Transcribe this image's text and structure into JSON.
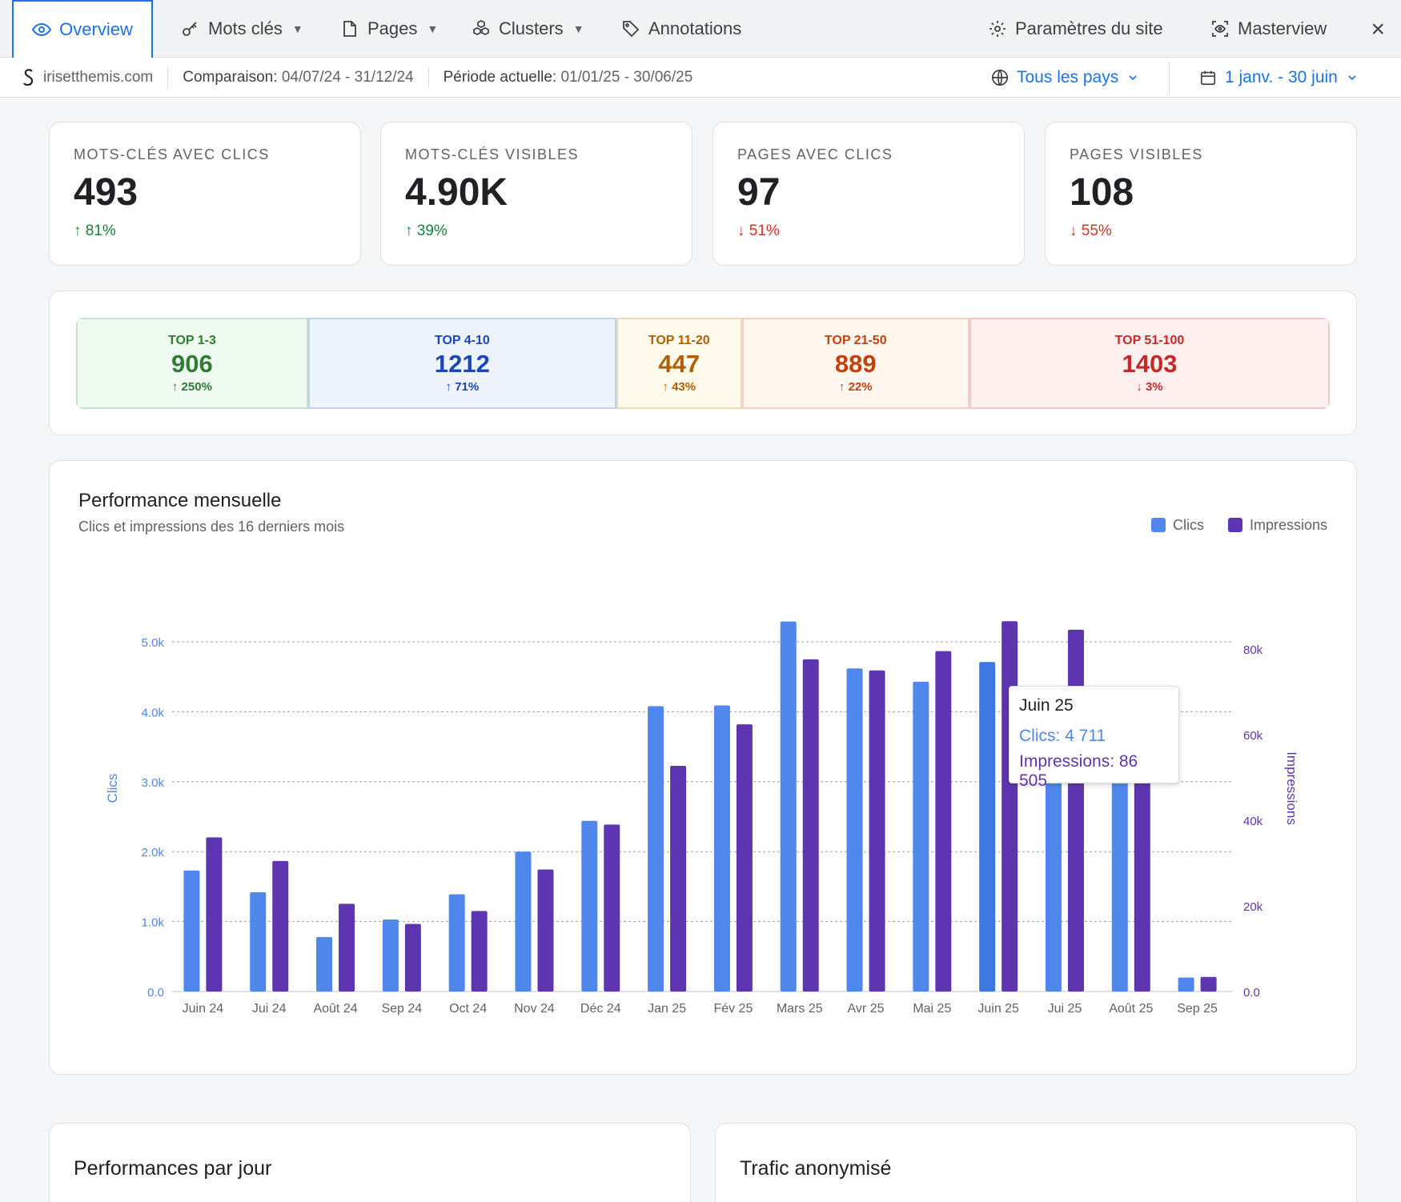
{
  "tabs": [
    {
      "label": "Overview"
    },
    {
      "label": "Mots clés"
    },
    {
      "label": "Pages"
    },
    {
      "label": "Clusters"
    },
    {
      "label": "Annotations"
    }
  ],
  "right_tabs": [
    {
      "label": "Paramètres du site"
    },
    {
      "label": "Masterview"
    }
  ],
  "close_label": "×",
  "subbar": {
    "site": "irisetthemis.com",
    "comparison_label": "Comparaison:",
    "comparison_value": "04/07/24 - 31/12/24",
    "period_label": "Période actuelle:",
    "period_value": "01/01/25 - 30/06/25",
    "country": "Tous les pays",
    "date_range": "1 janv. - 30 juin"
  },
  "kpis": [
    {
      "label": "MOTS-CLÉS AVEC CLICS",
      "value": "493",
      "delta": "81%",
      "dir": "up"
    },
    {
      "label": "MOTS-CLÉS VISIBLES",
      "value": "4.90K",
      "delta": "39%",
      "dir": "up"
    },
    {
      "label": "PAGES AVEC CLICS",
      "value": "97",
      "delta": "51%",
      "dir": "down"
    },
    {
      "label": "PAGES VISIBLES",
      "value": "108",
      "delta": "55%",
      "dir": "down"
    }
  ],
  "ranks": [
    {
      "label": "TOP 1-3",
      "value": "906",
      "delta": "250%",
      "dir": "up",
      "color": "#2e7d32",
      "bg": "#effbf0",
      "share": 0.161
    },
    {
      "label": "TOP 4-10",
      "value": "1212",
      "delta": "71%",
      "dir": "up",
      "color": "#1a47b8",
      "bg": "#edf4fd",
      "share": 0.214
    },
    {
      "label": "TOP 11-20",
      "value": "447",
      "delta": "43%",
      "dir": "up",
      "color": "#b06000",
      "bg": "#fefaec",
      "share": 0.087
    },
    {
      "label": "TOP 21-50",
      "value": "889",
      "delta": "22%",
      "dir": "up",
      "color": "#c2410c",
      "bg": "#fff6ee",
      "share": 0.158
    },
    {
      "label": "TOP 51-100",
      "value": "1403",
      "delta": "3%",
      "dir": "down",
      "color": "#c62828",
      "bg": "#fdf0ef",
      "share": 0.25
    }
  ],
  "chart": {
    "title": "Performance mensuelle",
    "subtitle": "Clics et impressions des 16 derniers mois",
    "legend_clicks": "Clics",
    "legend_impr": "Impressions",
    "clicks_color": "#5087ec",
    "impr_color": "#5e35b1"
  },
  "tooltip": {
    "title": "Juin 25",
    "clicks": "Clics: 4 711",
    "impressions": "Impressions: 86 505"
  },
  "chart_data": {
    "type": "bar",
    "categories": [
      "Juin 24",
      "Jui 24",
      "Août 24",
      "Sep 24",
      "Oct 24",
      "Nov 24",
      "Déc 24",
      "Jan 25",
      "Fév 25",
      "Mars 25",
      "Avr 25",
      "Mai 25",
      "Juin 25",
      "Jui 25",
      "Août 25",
      "Sep 25"
    ],
    "series": [
      {
        "name": "Clics",
        "axis": "left",
        "values": [
          1730,
          1420,
          780,
          1030,
          1390,
          2000,
          2440,
          4080,
          4090,
          5290,
          4620,
          4430,
          4711,
          4180,
          4150,
          200
        ]
      },
      {
        "name": "Impressions",
        "axis": "right",
        "values": [
          36000,
          30500,
          20500,
          15800,
          18800,
          28500,
          39000,
          52700,
          62400,
          77600,
          75000,
          79500,
          86505,
          84500,
          71000,
          3400
        ]
      }
    ],
    "ylabel_left": "Clics",
    "ylabel_right": "Impressions",
    "yticks_left": [
      "0.0",
      "1.0k",
      "2.0k",
      "3.0k",
      "4.0k",
      "5.0k"
    ],
    "yticks_right": [
      "0.0",
      "20k",
      "40k",
      "60k",
      "80k"
    ],
    "ylim_left": [
      0,
      5300
    ],
    "ylim_right": [
      0,
      86505
    ],
    "grid": true,
    "legend": "top-right"
  },
  "bottom": {
    "left_title": "Performances par jour",
    "right_title": "Trafic anonymisé"
  }
}
